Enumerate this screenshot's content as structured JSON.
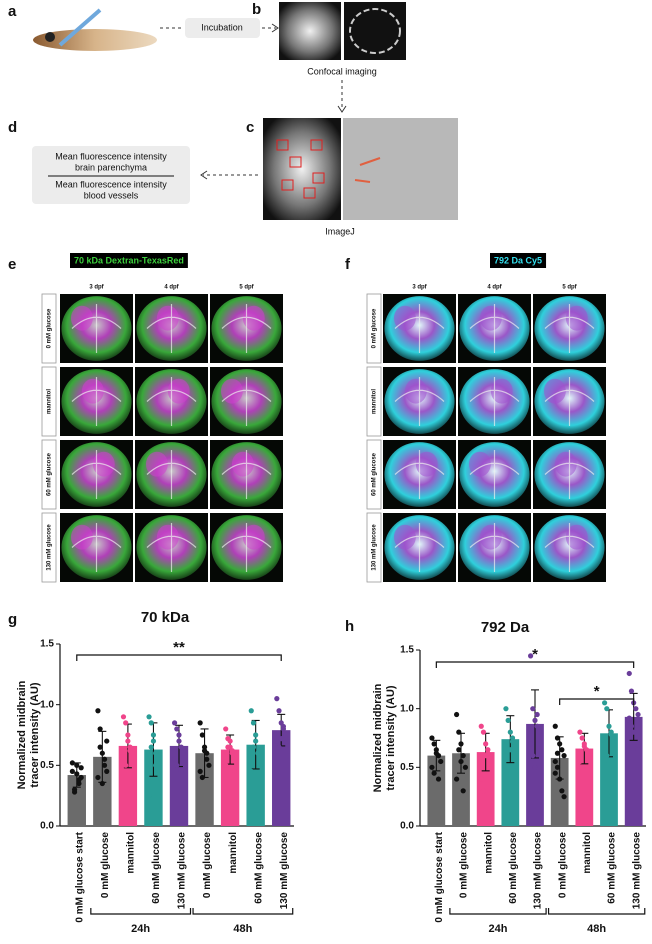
{
  "workflow": {
    "labels": [
      "a",
      "b",
      "c",
      "d"
    ],
    "incubation": "Incubation",
    "confocal": "Confocal imaging",
    "imagej": "ImageJ",
    "numerator": [
      "Mean fluorescence intensity",
      "brain parenchyma"
    ],
    "denominator": [
      "Mean fluorescence intensity",
      "blood vessels"
    ]
  },
  "panel_e": {
    "label": "e",
    "tracer": "70 kDa Dextran-TexasRed",
    "columns": [
      "3 dpf",
      "4 dpf",
      "5 dpf"
    ],
    "rows": [
      "0 mM glucose",
      "mannitol",
      "60 mM glucose",
      "130 mM glucose"
    ]
  },
  "panel_f": {
    "label": "f",
    "tracer": "792 Da Cy5",
    "columns": [
      "3 dpf",
      "4 dpf",
      "5 dpf"
    ],
    "rows": [
      "0 mM glucose",
      "mannitol",
      "60 mM glucose",
      "130 mM glucose"
    ]
  },
  "chart_data": [
    {
      "type": "bar",
      "panel_label": "g",
      "title": "70 kDa",
      "ylabel": [
        "Normalized midbrain",
        "tracer intensity (AU)"
      ],
      "categories": [
        "0 mM glucose start",
        "0 mM glucose",
        "mannitol",
        "60 mM glucose",
        "130 mM glucose",
        "0 mM glucose",
        "mannitol",
        "60 mM glucose",
        "130 mM glucose"
      ],
      "values": [
        0.42,
        0.57,
        0.66,
        0.63,
        0.66,
        0.6,
        0.63,
        0.67,
        0.79
      ],
      "errors": [
        0.1,
        0.21,
        0.18,
        0.22,
        0.17,
        0.2,
        0.12,
        0.2,
        0.13
      ],
      "colors": [
        "#6b6b6b",
        "#6b6b6b",
        "#f0458a",
        "#2a9d96",
        "#6a3d9a",
        "#6b6b6b",
        "#f0458a",
        "#2a9d96",
        "#6a3d9a"
      ],
      "points": [
        [
          0.45,
          0.3,
          0.5,
          0.35,
          0.4,
          0.52,
          0.28,
          0.43,
          0.38,
          0.48
        ],
        [
          0.95,
          0.8,
          0.6,
          0.55,
          0.45,
          0.4,
          0.65,
          0.35,
          0.5,
          0.7
        ],
        [
          0.9,
          0.85,
          0.75,
          0.65,
          0.6,
          0.55,
          0.5,
          0.7,
          0.62
        ],
        [
          0.9,
          0.85,
          0.7,
          0.6,
          0.55,
          0.25,
          0.65,
          0.75,
          0.5
        ],
        [
          0.85,
          0.8,
          0.75,
          0.65,
          0.6,
          0.55,
          0.5,
          0.7,
          0.45
        ],
        [
          0.85,
          0.75,
          0.65,
          0.55,
          0.5,
          0.45,
          0.4,
          0.62,
          0.6
        ],
        [
          0.8,
          0.72,
          0.65,
          0.6,
          0.55,
          0.5,
          0.65,
          0.7,
          0.62,
          0.45
        ],
        [
          0.95,
          0.85,
          0.7,
          0.6,
          0.5,
          0.45,
          0.65,
          0.75,
          0.6
        ],
        [
          1.05,
          0.95,
          0.85,
          0.8,
          0.75,
          0.7,
          0.65,
          0.72,
          0.82
        ]
      ],
      "ylim": [
        0,
        1.5
      ],
      "yticks": [
        {
          "value": 0,
          "label": "0.0"
        },
        0.5,
        {
          "value": 1,
          "label": "1.0"
        },
        1.5
      ],
      "group_labels": [
        "24h",
        "48h"
      ],
      "significance": [
        "**"
      ]
    },
    {
      "type": "bar",
      "panel_label": "h",
      "title": "792 Da",
      "ylabel": [
        "Normalized midbrain",
        "tracer intensity (AU)"
      ],
      "categories": [
        "0 mM glucose start",
        "0 mM glucose",
        "mannitol",
        "60 mM glucose",
        "130 mM glucose",
        "0 mM glucose",
        "mannitol",
        "60 mM glucose",
        "130 mM glucose"
      ],
      "values": [
        0.6,
        0.62,
        0.63,
        0.74,
        0.87,
        0.58,
        0.66,
        0.79,
        0.93
      ],
      "errors": [
        0.13,
        0.17,
        0.16,
        0.2,
        0.29,
        0.18,
        0.13,
        0.2,
        0.2
      ],
      "colors": [
        "#6b6b6b",
        "#6b6b6b",
        "#f0458a",
        "#2a9d96",
        "#6a3d9a",
        "#6b6b6b",
        "#f0458a",
        "#2a9d96",
        "#6a3d9a"
      ],
      "points": [
        [
          0.75,
          0.7,
          0.65,
          0.6,
          0.55,
          0.5,
          0.45,
          0.62,
          0.4
        ],
        [
          0.95,
          0.8,
          0.7,
          0.6,
          0.5,
          0.4,
          0.65,
          0.55,
          0.3
        ],
        [
          0.85,
          0.8,
          0.7,
          0.65,
          0.55,
          0.4,
          0.3,
          0.6,
          0.62
        ],
        [
          1.0,
          0.9,
          0.8,
          0.75,
          0.7,
          0.6,
          0.5,
          0.65,
          0.72
        ],
        [
          1.45,
          1.0,
          0.9,
          0.85,
          0.8,
          0.7,
          0.6,
          0.5,
          0.95
        ],
        [
          0.85,
          0.75,
          0.7,
          0.65,
          0.6,
          0.55,
          0.5,
          0.4,
          0.3,
          0.25,
          0.45,
          0.62
        ],
        [
          0.8,
          0.75,
          0.7,
          0.65,
          0.6,
          0.55,
          0.5,
          0.68
        ],
        [
          1.05,
          1.0,
          0.85,
          0.8,
          0.75,
          0.7,
          0.6,
          0.55,
          0.78
        ],
        [
          1.3,
          1.15,
          1.05,
          1.0,
          0.95,
          0.9,
          0.85,
          0.8,
          0.7,
          0.65,
          0.92
        ]
      ],
      "ylim": [
        0,
        1.5
      ],
      "yticks": [
        {
          "value": 0,
          "label": "0.0"
        },
        0.5,
        {
          "value": 1,
          "label": "1.0"
        },
        1.5
      ],
      "group_labels": [
        "24h",
        "48h"
      ],
      "significance": [
        "*",
        "*"
      ]
    }
  ]
}
